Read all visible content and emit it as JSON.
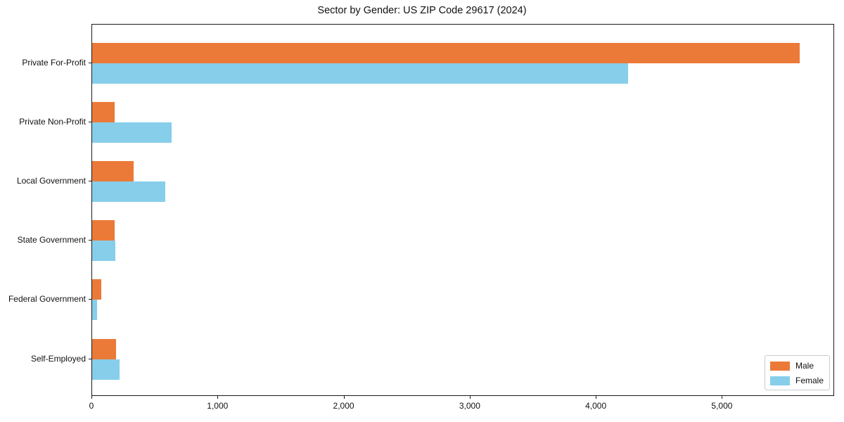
{
  "chart_data": {
    "type": "bar",
    "orientation": "horizontal",
    "title": "Sector by Gender: US ZIP Code 29617 (2024)",
    "xlabel": "",
    "ylabel": "",
    "categories": [
      "Private For-Profit",
      "Private Non-Profit",
      "Local Government",
      "State Government",
      "Federal Government",
      "Self-Employed"
    ],
    "series": [
      {
        "name": "Male",
        "color": "#EB7A39",
        "values": [
          5610,
          180,
          330,
          180,
          75,
          190
        ]
      },
      {
        "name": "Female",
        "color": "#87CEEB",
        "values": [
          4250,
          630,
          580,
          185,
          37,
          215
        ]
      }
    ],
    "xlim": [
      0,
      5890
    ],
    "xticks": [
      0,
      1000,
      2000,
      3000,
      4000,
      5000
    ],
    "xtick_labels": [
      "0",
      "1,000",
      "2,000",
      "3,000",
      "4,000",
      "5,000"
    ],
    "grid": false,
    "legend_position": "lower right"
  },
  "legend": {
    "items": [
      {
        "label": "Male"
      },
      {
        "label": "Female"
      }
    ]
  }
}
